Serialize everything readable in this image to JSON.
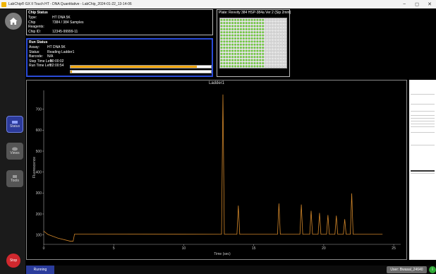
{
  "window": {
    "title": "LabChip® GX II Touch HT - DNA Quantitative - LabChip_2024-01-22_13-14-06",
    "minimize": "−",
    "maximize": "◻",
    "close": "✕"
  },
  "sidebar": {
    "status_label": "Status",
    "views_label": "Views",
    "tools_label": "Tools",
    "stop_label": "Stop"
  },
  "chip_status": {
    "header": "Chip Status",
    "rows": [
      {
        "key": "Type:",
        "value": "HT DNA 5K"
      },
      {
        "key": "Chip Reagents:",
        "value": "7384 / 384 Samples"
      },
      {
        "key": "Chip ID:",
        "value": "12345-99999-11"
      }
    ]
  },
  "run_status": {
    "header": "Run Status",
    "rows": [
      {
        "key": "Assay:",
        "value": "HT DNA 5K"
      },
      {
        "key": "Status:",
        "value": "Reading Ladder1"
      },
      {
        "key": "Barcode:",
        "value": "N/A"
      },
      {
        "key": "Step Time Left:",
        "value": "00:00:02"
      },
      {
        "key": "Run Time Left:",
        "value": "02:00:54"
      }
    ],
    "step_progress": 0.9,
    "run_progress": 0.01
  },
  "plate": {
    "label": "Plate:  Revvity 384 HSP-384a Ver 2 (Sip 2mm)",
    "well_color": "#6fcf3a",
    "empty_color": "#d9d9d9"
  },
  "chart_data": {
    "type": "line",
    "title": "Ladder1",
    "xlabel": "Time (sec)",
    "ylabel": "Fluorescence",
    "xlim": [
      0,
      25.5
    ],
    "ylim": [
      55,
      790
    ],
    "xticks": [
      0,
      5,
      10,
      15,
      20,
      25
    ],
    "yticks": [
      100,
      200,
      300,
      400,
      500,
      600,
      700
    ],
    "line_color": "#d2872a",
    "baseline": 103,
    "pre_baseline": [
      [
        0,
        118
      ],
      [
        0.3,
        102
      ],
      [
        1.0,
        85
      ],
      [
        1.9,
        70
      ],
      [
        2.1,
        70
      ],
      [
        2.2,
        104
      ]
    ],
    "peaks": [
      {
        "x": 12.8,
        "h": 770
      },
      {
        "x": 13.9,
        "h": 240
      },
      {
        "x": 16.8,
        "h": 250
      },
      {
        "x": 18.4,
        "h": 245
      },
      {
        "x": 19.1,
        "h": 215
      },
      {
        "x": 19.7,
        "h": 205
      },
      {
        "x": 20.3,
        "h": 195
      },
      {
        "x": 20.9,
        "h": 192
      },
      {
        "x": 21.5,
        "h": 175
      },
      {
        "x": 22.0,
        "h": 298
      }
    ],
    "x_end": 24.2
  },
  "statusbar": {
    "state": "Running",
    "user": "User: Bwasal_24640",
    "info": "i"
  }
}
